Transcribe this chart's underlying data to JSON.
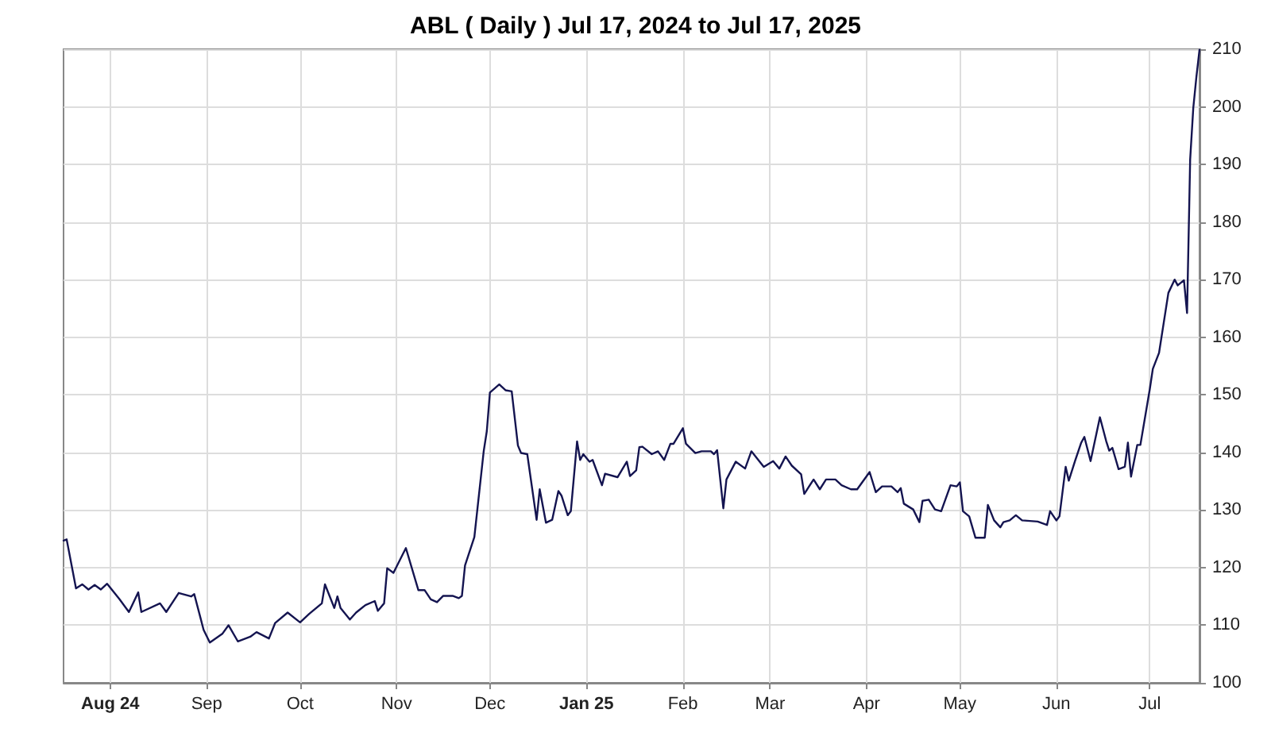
{
  "chart_data": {
    "type": "line",
    "title": "ABL ( Daily ) Jul 17, 2024 to Jul 17, 2025",
    "x": [
      "2024-07-17",
      "2024-07-18",
      "2024-07-21",
      "2024-07-23",
      "2024-07-25",
      "2024-07-27",
      "2024-07-29",
      "2024-07-31",
      "2024-08-04",
      "2024-08-07",
      "2024-08-10",
      "2024-08-11",
      "2024-08-17",
      "2024-08-19",
      "2024-08-23",
      "2024-08-27",
      "2024-08-28",
      "2024-08-31",
      "2024-09-02",
      "2024-09-06",
      "2024-09-08",
      "2024-09-11",
      "2024-09-15",
      "2024-09-17",
      "2024-09-21",
      "2024-09-23",
      "2024-09-27",
      "2024-10-01",
      "2024-10-04",
      "2024-10-08",
      "2024-10-09",
      "2024-10-12",
      "2024-10-13",
      "2024-10-14",
      "2024-10-17",
      "2024-10-19",
      "2024-10-22",
      "2024-10-25",
      "2024-10-26",
      "2024-10-28",
      "2024-10-29",
      "2024-10-31",
      "2024-11-04",
      "2024-11-08",
      "2024-11-10",
      "2024-11-12",
      "2024-11-14",
      "2024-11-16",
      "2024-11-19",
      "2024-11-21",
      "2024-11-22",
      "2024-11-23",
      "2024-11-26",
      "2024-11-29",
      "2024-11-30",
      "2024-12-01",
      "2024-12-04",
      "2024-12-06",
      "2024-12-08",
      "2024-12-10",
      "2024-12-11",
      "2024-12-13",
      "2024-12-16",
      "2024-12-17",
      "2024-12-19",
      "2024-12-21",
      "2024-12-23",
      "2024-12-24",
      "2024-12-26",
      "2024-12-27",
      "2024-12-29",
      "2024-12-30",
      "2024-12-31",
      "2025-01-02",
      "2025-01-03",
      "2025-01-06",
      "2025-01-07",
      "2025-01-11",
      "2025-01-14",
      "2025-01-15",
      "2025-01-17",
      "2025-01-18",
      "2025-01-19",
      "2025-01-22",
      "2025-01-24",
      "2025-01-26",
      "2025-01-28",
      "2025-01-29",
      "2025-02-01",
      "2025-02-02",
      "2025-02-05",
      "2025-02-07",
      "2025-02-10",
      "2025-02-11",
      "2025-02-12",
      "2025-02-14",
      "2025-02-15",
      "2025-02-18",
      "2025-02-21",
      "2025-02-23",
      "2025-02-27",
      "2025-03-02",
      "2025-03-04",
      "2025-03-06",
      "2025-03-08",
      "2025-03-11",
      "2025-03-12",
      "2025-03-15",
      "2025-03-17",
      "2025-03-19",
      "2025-03-22",
      "2025-03-24",
      "2025-03-27",
      "2025-03-29",
      "2025-04-02",
      "2025-04-04",
      "2025-04-06",
      "2025-04-09",
      "2025-04-11",
      "2025-04-12",
      "2025-04-13",
      "2025-04-16",
      "2025-04-18",
      "2025-04-19",
      "2025-04-21",
      "2025-04-23",
      "2025-04-25",
      "2025-04-28",
      "2025-04-30",
      "2025-05-01",
      "2025-05-02",
      "2025-05-04",
      "2025-05-06",
      "2025-05-09",
      "2025-05-10",
      "2025-05-12",
      "2025-05-14",
      "2025-05-15",
      "2025-05-17",
      "2025-05-19",
      "2025-05-21",
      "2025-05-26",
      "2025-05-29",
      "2025-05-30",
      "2025-06-01",
      "2025-06-02",
      "2025-06-04",
      "2025-06-05",
      "2025-06-07",
      "2025-06-09",
      "2025-06-10",
      "2025-06-12",
      "2025-06-15",
      "2025-06-17",
      "2025-06-18",
      "2025-06-19",
      "2025-06-21",
      "2025-06-23",
      "2025-06-24",
      "2025-06-25",
      "2025-06-27",
      "2025-06-28",
      "2025-07-01",
      "2025-07-02",
      "2025-07-04",
      "2025-07-07",
      "2025-07-09",
      "2025-07-10",
      "2025-07-12",
      "2025-07-13",
      "2025-07-14",
      "2025-07-15",
      "2025-07-16",
      "2025-07-17"
    ],
    "series": [
      {
        "color": "#141450",
        "values": [
          124.7,
          124.9,
          116.4,
          117.1,
          116.2,
          117.0,
          116.2,
          117.2,
          114.5,
          112.3,
          115.7,
          112.3,
          113.8,
          112.3,
          115.6,
          115.0,
          115.4,
          109.2,
          107.0,
          108.5,
          110.0,
          107.2,
          108.0,
          108.8,
          107.7,
          110.4,
          112.2,
          110.5,
          112.0,
          113.8,
          117.1,
          113.0,
          115.0,
          113.0,
          111.0,
          112.2,
          113.5,
          114.2,
          112.5,
          113.8,
          119.9,
          119.1,
          123.4,
          116.1,
          116.1,
          114.5,
          114.0,
          115.1,
          115.1,
          114.7,
          115.1,
          120.4,
          125.3,
          140.2,
          143.7,
          150.4,
          151.8,
          150.8,
          150.6,
          141.2,
          139.9,
          139.7,
          128.3,
          133.6,
          127.8,
          128.3,
          133.3,
          132.5,
          129.1,
          129.8,
          141.9,
          138.7,
          139.7,
          138.4,
          138.7,
          134.3,
          136.3,
          135.7,
          138.4,
          135.9,
          136.9,
          140.9,
          141.0,
          139.7,
          140.2,
          138.7,
          141.5,
          141.5,
          144.2,
          141.5,
          139.9,
          140.2,
          140.2,
          139.7,
          140.4,
          130.3,
          135.3,
          138.4,
          137.2,
          140.2,
          137.5,
          138.5,
          137.2,
          139.3,
          137.7,
          136.2,
          132.8,
          135.3,
          133.6,
          135.3,
          135.3,
          134.3,
          133.6,
          133.6,
          136.6,
          133.1,
          134.1,
          134.1,
          133.1,
          133.8,
          131.1,
          130.1,
          127.9,
          131.6,
          131.8,
          130.1,
          129.8,
          134.3,
          134.1,
          134.8,
          129.8,
          128.9,
          125.2,
          125.2,
          130.9,
          128.2,
          127.0,
          127.9,
          128.2,
          129.1,
          128.2,
          128.0,
          127.4,
          129.8,
          128.2,
          128.9,
          137.5,
          135.1,
          138.5,
          141.7,
          142.7,
          138.5,
          146.1,
          142.0,
          140.3,
          140.8,
          137.1,
          137.5,
          141.7,
          135.8,
          141.3,
          141.3,
          150.9,
          154.5,
          157.3,
          167.7,
          170.0,
          169.0,
          169.9,
          164.2,
          190.9,
          199.8,
          205.2,
          209.9
        ]
      }
    ],
    "xlim": [
      "2024-07-17",
      "2025-07-17"
    ],
    "xticks": [
      {
        "value": "2024-08-01",
        "label": "Aug 24"
      },
      {
        "value": "2024-09-01",
        "label": "Sep"
      },
      {
        "value": "2024-10-01",
        "label": "Oct"
      },
      {
        "value": "2024-11-01",
        "label": "Nov"
      },
      {
        "value": "2024-12-01",
        "label": "Dec"
      },
      {
        "value": "2025-01-01",
        "label": "Jan 25"
      },
      {
        "value": "2025-02-01",
        "label": "Feb"
      },
      {
        "value": "2025-03-01",
        "label": "Mar"
      },
      {
        "value": "2025-04-01",
        "label": "Apr"
      },
      {
        "value": "2025-05-01",
        "label": "May"
      },
      {
        "value": "2025-06-01",
        "label": "Jun"
      },
      {
        "value": "2025-07-01",
        "label": "Jul"
      }
    ],
    "ylim": [
      100,
      210
    ],
    "yticks": [
      100,
      110,
      120,
      130,
      140,
      150,
      160,
      170,
      180,
      190,
      200,
      210
    ],
    "grid": true,
    "marker": "none",
    "line_style": "solid"
  }
}
